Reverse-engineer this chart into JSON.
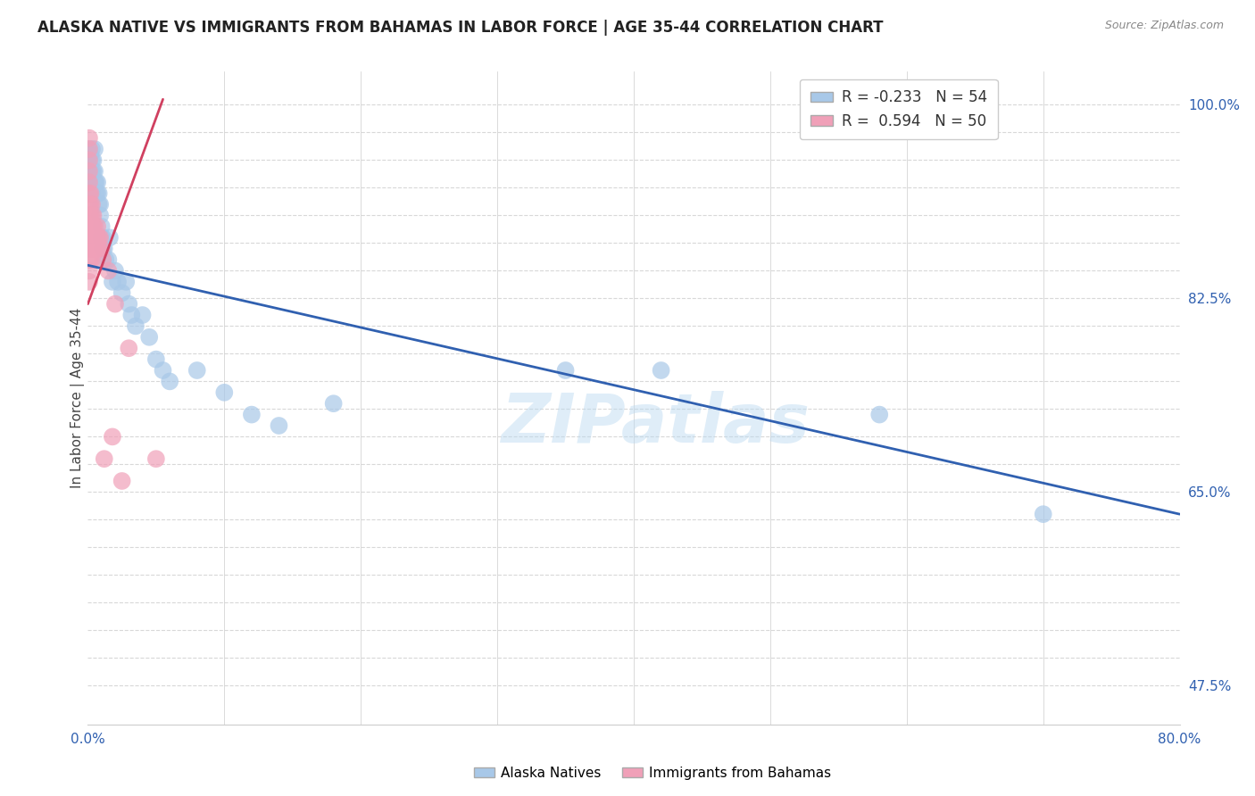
{
  "title": "ALASKA NATIVE VS IMMIGRANTS FROM BAHAMAS IN LABOR FORCE | AGE 35-44 CORRELATION CHART",
  "source": "Source: ZipAtlas.com",
  "ylabel": "In Labor Force | Age 35-44",
  "xlim": [
    0.0,
    0.8
  ],
  "ylim": [
    0.44,
    1.03
  ],
  "background_color": "#ffffff",
  "grid_color": "#d8d8d8",
  "blue_color": "#a8c8e8",
  "pink_color": "#f0a0b8",
  "blue_line_color": "#3060b0",
  "pink_line_color": "#d04060",
  "legend_blue_label": "R = -0.233   N = 54",
  "legend_pink_label": "R =  0.594   N = 50",
  "watermark": "ZIPatlas",
  "blue_scatter_x": [
    0.001,
    0.001,
    0.001,
    0.001,
    0.002,
    0.002,
    0.002,
    0.003,
    0.003,
    0.003,
    0.003,
    0.004,
    0.004,
    0.005,
    0.005,
    0.005,
    0.006,
    0.006,
    0.007,
    0.007,
    0.008,
    0.008,
    0.009,
    0.009,
    0.01,
    0.01,
    0.011,
    0.011,
    0.012,
    0.013,
    0.015,
    0.016,
    0.018,
    0.02,
    0.022,
    0.025,
    0.028,
    0.03,
    0.032,
    0.035,
    0.04,
    0.045,
    0.05,
    0.055,
    0.06,
    0.08,
    0.1,
    0.12,
    0.14,
    0.18,
    0.35,
    0.42,
    0.58,
    0.7
  ],
  "blue_scatter_y": [
    0.96,
    0.95,
    0.94,
    0.93,
    0.955,
    0.94,
    0.92,
    0.96,
    0.95,
    0.94,
    0.92,
    0.95,
    0.94,
    0.94,
    0.93,
    0.96,
    0.93,
    0.92,
    0.93,
    0.92,
    0.92,
    0.91,
    0.91,
    0.9,
    0.89,
    0.88,
    0.88,
    0.87,
    0.87,
    0.86,
    0.86,
    0.88,
    0.84,
    0.85,
    0.84,
    0.83,
    0.84,
    0.82,
    0.81,
    0.8,
    0.81,
    0.79,
    0.77,
    0.76,
    0.75,
    0.76,
    0.74,
    0.72,
    0.71,
    0.73,
    0.76,
    0.76,
    0.72,
    0.63
  ],
  "pink_scatter_x": [
    0.001,
    0.001,
    0.001,
    0.001,
    0.001,
    0.001,
    0.001,
    0.001,
    0.001,
    0.001,
    0.001,
    0.001,
    0.001,
    0.001,
    0.002,
    0.002,
    0.002,
    0.002,
    0.002,
    0.002,
    0.002,
    0.003,
    0.003,
    0.003,
    0.003,
    0.003,
    0.003,
    0.004,
    0.004,
    0.004,
    0.005,
    0.005,
    0.005,
    0.006,
    0.006,
    0.007,
    0.007,
    0.007,
    0.008,
    0.008,
    0.009,
    0.01,
    0.011,
    0.012,
    0.015,
    0.018,
    0.02,
    0.025,
    0.03,
    0.05
  ],
  "pink_scatter_y": [
    0.84,
    0.85,
    0.86,
    0.87,
    0.88,
    0.89,
    0.9,
    0.91,
    0.92,
    0.93,
    0.94,
    0.95,
    0.96,
    0.97,
    0.86,
    0.87,
    0.88,
    0.89,
    0.9,
    0.91,
    0.92,
    0.86,
    0.87,
    0.88,
    0.89,
    0.9,
    0.91,
    0.88,
    0.89,
    0.9,
    0.87,
    0.88,
    0.89,
    0.87,
    0.88,
    0.87,
    0.88,
    0.89,
    0.87,
    0.88,
    0.88,
    0.87,
    0.86,
    0.68,
    0.85,
    0.7,
    0.82,
    0.66,
    0.78,
    0.68
  ],
  "blue_line_x": [
    0.0,
    0.8
  ],
  "blue_line_y": [
    0.855,
    0.63
  ],
  "pink_line_x": [
    0.0,
    0.055
  ],
  "pink_line_y": [
    0.82,
    1.005
  ],
  "ytick_positions": [
    0.475,
    0.65,
    0.825,
    1.0
  ],
  "ytick_labels": [
    "47.5%",
    "65.0%",
    "82.5%",
    "100.0%"
  ],
  "xtick_positions": [
    0.0,
    0.8
  ],
  "xtick_labels": [
    "0.0%",
    "80.0%"
  ],
  "grid_yticks": [
    0.475,
    0.5,
    0.525,
    0.55,
    0.575,
    0.6,
    0.625,
    0.65,
    0.675,
    0.7,
    0.725,
    0.75,
    0.775,
    0.8,
    0.825,
    0.85,
    0.875,
    0.9,
    0.925,
    0.95,
    0.975,
    1.0
  ]
}
